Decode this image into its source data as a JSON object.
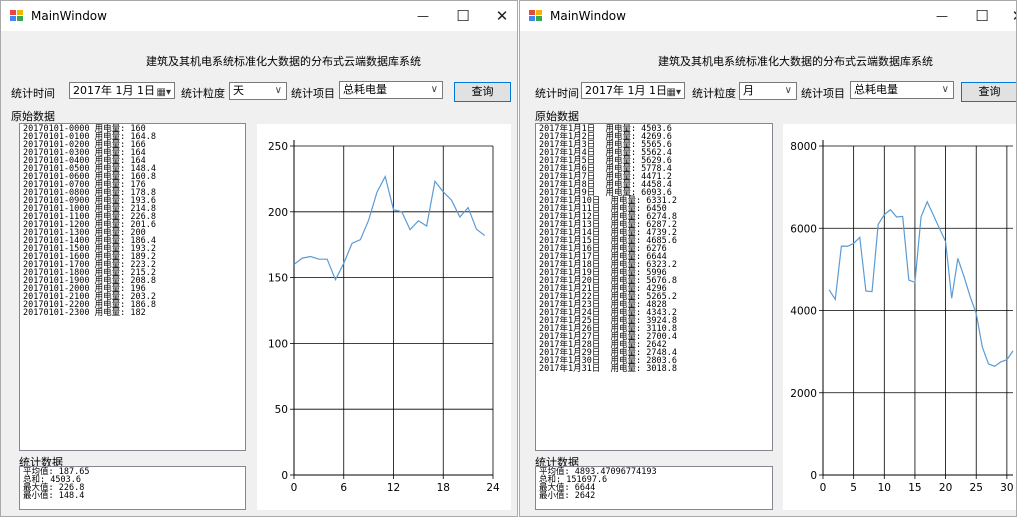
{
  "windows": [
    {
      "title": "MainWindow",
      "minimize_glyph": "—",
      "maximize_glyph": "☐",
      "close_glyph": "✕",
      "header": "建筑及其机电系统标准化大数据的分布式云端数据库系统",
      "time_label": "统计时间",
      "date_value": "2017年 1月 1日",
      "granularity_label": "统计粒度",
      "granularity_value": "天",
      "item_label": "统计项目",
      "item_value": "总耗电量",
      "query_button": "查询",
      "raw_label": "原始数据",
      "stats_label": "统计数据",
      "raw_rows": [
        "20170101-0000 用电量: 160",
        "20170101-0100 用电量: 164.8",
        "20170101-0200 用电量: 166",
        "20170101-0300 用电量: 164",
        "20170101-0400 用电量: 164",
        "20170101-0500 用电量: 148.4",
        "20170101-0600 用电量: 160.8",
        "20170101-0700 用电量: 176",
        "20170101-0800 用电量: 178.8",
        "20170101-0900 用电量: 193.6",
        "20170101-1000 用电量: 214.8",
        "20170101-1100 用电量: 226.8",
        "20170101-1200 用电量: 201.6",
        "20170101-1300 用电量: 200",
        "20170101-1400 用电量: 186.4",
        "20170101-1500 用电量: 193.2",
        "20170101-1600 用电量: 189.2",
        "20170101-1700 用电量: 223.2",
        "20170101-1800 用电量: 215.2",
        "20170101-1900 用电量: 208.8",
        "20170101-2000 用电量: 196",
        "20170101-2100 用电量: 203.2",
        "20170101-2200 用电量: 186.8",
        "20170101-2300 用电量: 182"
      ],
      "stats_rows": [
        "平均值: 187.65",
        "总和: 4503.6",
        "最大值: 226.8",
        "最小值: 148.4"
      ]
    },
    {
      "title": "MainWindow",
      "minimize_glyph": "—",
      "maximize_glyph": "☐",
      "close_glyph": "✕",
      "header": "建筑及其机电系统标准化大数据的分布式云端数据库系统",
      "time_label": "统计时间",
      "date_value": "2017年 1月 1日",
      "granularity_label": "统计粒度",
      "granularity_value": "月",
      "item_label": "统计项目",
      "item_value": "总耗电量",
      "query_button": "查询",
      "raw_label": "原始数据",
      "stats_label": "统计数据",
      "raw_rows": [
        "2017年1月1日  用电量: 4503.6",
        "2017年1月2日  用电量: 4269.6",
        "2017年1月3日  用电量: 5565.6",
        "2017年1月4日  用电量: 5562.4",
        "2017年1月5日  用电量: 5629.6",
        "2017年1月6日  用电量: 5778.4",
        "2017年1月7日  用电量: 4471.2",
        "2017年1月8日  用电量: 4458.4",
        "2017年1月9日  用电量: 6093.6",
        "2017年1月10日  用电量: 6331.2",
        "2017年1月11日  用电量: 6450",
        "2017年1月12日  用电量: 6274.8",
        "2017年1月13日  用电量: 6287.2",
        "2017年1月14日  用电量: 4739.2",
        "2017年1月15日  用电量: 4685.6",
        "2017年1月16日  用电量: 6276",
        "2017年1月17日  用电量: 6644",
        "2017年1月18日  用电量: 6323.2",
        "2017年1月19日  用电量: 5996",
        "2017年1月20日  用电量: 5676.8",
        "2017年1月21日  用电量: 4296",
        "2017年1月22日  用电量: 5265.2",
        "2017年1月23日  用电量: 4828",
        "2017年1月24日  用电量: 4343.2",
        "2017年1月25日  用电量: 3924.8",
        "2017年1月26日  用电量: 3110.8",
        "2017年1月27日  用电量: 2700.4",
        "2017年1月28日  用电量: 2642",
        "2017年1月29日  用电量: 2748.4",
        "2017年1月30日  用电量: 2803.6",
        "2017年1月31日  用电量: 3018.8"
      ],
      "stats_rows": [
        "平均值: 4893.47096774193",
        "总和: 151697.6",
        "最大值: 6644",
        "最小值: 2642"
      ]
    }
  ],
  "chart_data": [
    {
      "type": "line",
      "x": [
        0,
        1,
        2,
        3,
        4,
        5,
        6,
        7,
        8,
        9,
        10,
        11,
        12,
        13,
        14,
        15,
        16,
        17,
        18,
        19,
        20,
        21,
        22,
        23
      ],
      "series": [
        {
          "values": [
            160,
            164.8,
            166,
            164,
            164,
            148.4,
            160.8,
            176,
            178.8,
            193.6,
            214.8,
            226.8,
            201.6,
            200,
            186.4,
            193.2,
            189.2,
            223.2,
            215.2,
            208.8,
            196,
            203.2,
            186.8,
            182
          ]
        }
      ],
      "xlim": [
        0,
        24
      ],
      "ylim": [
        0,
        250
      ],
      "xticks": [
        0,
        6,
        12,
        18,
        24
      ],
      "yticks": [
        0,
        50,
        100,
        150,
        200,
        250
      ],
      "grid": true,
      "line_color": "#5b9bd5"
    },
    {
      "type": "line",
      "x": [
        1,
        2,
        3,
        4,
        5,
        6,
        7,
        8,
        9,
        10,
        11,
        12,
        13,
        14,
        15,
        16,
        17,
        18,
        19,
        20,
        21,
        22,
        23,
        24,
        25,
        26,
        27,
        28,
        29,
        30,
        31
      ],
      "series": [
        {
          "values": [
            4503.6,
            4269.6,
            5565.6,
            5562.4,
            5629.6,
            5778.4,
            4471.2,
            4458.4,
            6093.6,
            6331.2,
            6450,
            6274.8,
            6287.2,
            4739.2,
            4685.6,
            6276,
            6644,
            6323.2,
            5996,
            5676.8,
            4296,
            5265.2,
            4828,
            4343.2,
            3924.8,
            3110.8,
            2700.4,
            2642,
            2748.4,
            2803.6,
            3018.8
          ]
        }
      ],
      "xlim": [
        0,
        31
      ],
      "ylim": [
        0,
        8000
      ],
      "xticks": [
        0,
        5,
        10,
        15,
        20,
        25,
        30
      ],
      "yticks": [
        0,
        2000,
        4000,
        6000,
        8000
      ],
      "grid": true,
      "line_color": "#5b9bd5"
    }
  ]
}
